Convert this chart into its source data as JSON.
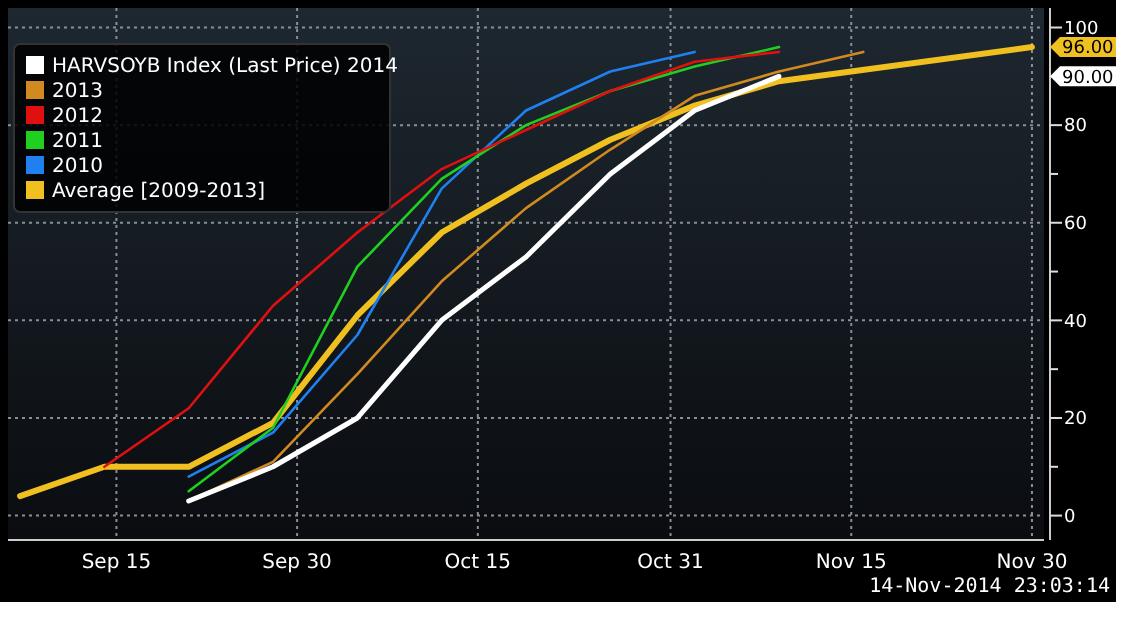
{
  "chart_data": {
    "type": "line",
    "xlim": [
      "2014-09-06",
      "2014-12-01"
    ],
    "xticks": [
      {
        "value": "2014-09-15",
        "label": "Sep 15"
      },
      {
        "value": "2014-09-30",
        "label": "Sep 30"
      },
      {
        "value": "2014-10-15",
        "label": "Oct 15"
      },
      {
        "value": "2014-10-31",
        "label": "Oct 31"
      },
      {
        "value": "2014-11-15",
        "label": "Nov 15"
      },
      {
        "value": "2014-11-30",
        "label": "Nov 30"
      }
    ],
    "ylim": [
      -5,
      104
    ],
    "yticks": [
      0,
      {
        "value": 10,
        "label": null
      },
      20,
      {
        "value": 30,
        "label": null
      },
      40,
      {
        "value": 50,
        "label": null
      },
      60,
      {
        "value": 70,
        "label": null
      },
      80,
      {
        "value": 90,
        "label": null
      },
      100
    ],
    "grid": true,
    "legend": "top left",
    "series": [
      {
        "name": "HARVSOYB Index (Last Price) 2014",
        "color": "#ffffff",
        "x": [
          "2014-09-21",
          "2014-09-28",
          "2014-10-05",
          "2014-10-12",
          "2014-10-19",
          "2014-10-26",
          "2014-11-02",
          "2014-11-09"
        ],
        "values": [
          3,
          10,
          20,
          40,
          53,
          70,
          83,
          90
        ]
      },
      {
        "name": "2013",
        "color": "#d08a20",
        "x": [
          "2014-09-21",
          "2014-09-28",
          "2014-10-05",
          "2014-10-12",
          "2014-10-19",
          "2014-10-26",
          "2014-11-02",
          "2014-11-09",
          "2014-11-16"
        ],
        "values": [
          3,
          11,
          29,
          48,
          63,
          75,
          86,
          91,
          95
        ]
      },
      {
        "name": "2012",
        "color": "#e01010",
        "x": [
          "2014-09-14",
          "2014-09-21",
          "2014-09-28",
          "2014-10-05",
          "2014-10-12",
          "2014-10-19",
          "2014-10-26",
          "2014-11-02",
          "2014-11-09"
        ],
        "values": [
          10,
          22,
          43,
          58,
          71,
          79,
          87,
          93,
          95
        ]
      },
      {
        "name": "2011",
        "color": "#20d020",
        "x": [
          "2014-09-21",
          "2014-09-28",
          "2014-10-05",
          "2014-10-12",
          "2014-10-19",
          "2014-10-26",
          "2014-11-02",
          "2014-11-09"
        ],
        "values": [
          5,
          18,
          51,
          69,
          80,
          87,
          92,
          96
        ]
      },
      {
        "name": "2010",
        "color": "#2080f0",
        "x": [
          "2014-09-21",
          "2014-09-28",
          "2014-10-05",
          "2014-10-12",
          "2014-10-19",
          "2014-10-26",
          "2014-11-02"
        ],
        "values": [
          8,
          17,
          37,
          67,
          83,
          91,
          95
        ]
      },
      {
        "name": "Average [2009-2013]",
        "color": "#f0c020",
        "x": [
          "2014-09-07",
          "2014-09-14",
          "2014-09-21",
          "2014-09-28",
          "2014-10-05",
          "2014-10-12",
          "2014-10-19",
          "2014-10-26",
          "2014-11-02",
          "2014-11-09",
          "2014-11-30"
        ],
        "values": [
          4,
          10,
          10,
          19,
          41,
          58,
          68,
          77,
          84,
          89,
          96
        ]
      }
    ],
    "annotations": [
      "96.00",
      "90.00",
      "14-Nov-2014 23:03:14"
    ]
  }
}
